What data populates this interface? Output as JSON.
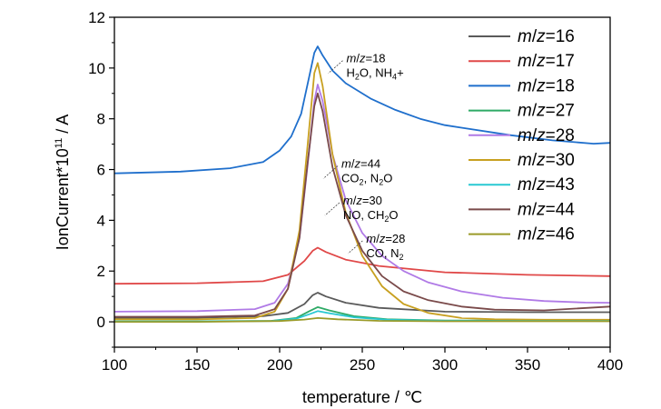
{
  "chart_data": {
    "type": "line",
    "xlabel": "temperature / ℃",
    "ylabel": "IonCurrent*10",
    "ylabel_exp": "11",
    "ylabel_unit": " / A",
    "xlim": [
      100,
      400
    ],
    "ylim": [
      -1,
      12
    ],
    "xticks": [
      100,
      150,
      200,
      250,
      300,
      350,
      400
    ],
    "yticks": [
      0,
      2,
      4,
      6,
      8,
      10,
      12
    ],
    "grid": false,
    "legend_position": "top-right",
    "series": [
      {
        "name": "m/z=16",
        "color": "#5a5a5a",
        "x": [
          100,
          150,
          190,
          205,
          215,
          220,
          223,
          228,
          240,
          260,
          300,
          350,
          400
        ],
        "y": [
          0.15,
          0.16,
          0.22,
          0.35,
          0.7,
          1.05,
          1.15,
          1.0,
          0.75,
          0.55,
          0.4,
          0.38,
          0.38
        ]
      },
      {
        "name": "m/z=17",
        "color": "#e04848",
        "x": [
          100,
          150,
          190,
          205,
          215,
          220,
          223,
          228,
          240,
          260,
          300,
          350,
          400
        ],
        "y": [
          1.5,
          1.52,
          1.6,
          1.85,
          2.4,
          2.8,
          2.92,
          2.75,
          2.45,
          2.2,
          1.95,
          1.85,
          1.8
        ]
      },
      {
        "name": "m/z=18",
        "color": "#1f6fcc",
        "x": [
          100,
          140,
          170,
          190,
          200,
          207,
          213,
          218,
          221,
          223,
          226,
          232,
          240,
          255,
          270,
          285,
          300,
          310,
          340,
          365,
          390,
          400
        ],
        "y": [
          5.85,
          5.92,
          6.05,
          6.3,
          6.75,
          7.3,
          8.2,
          9.7,
          10.6,
          10.85,
          10.5,
          9.9,
          9.4,
          8.8,
          8.35,
          8.0,
          7.75,
          7.65,
          7.35,
          7.15,
          7.02,
          7.05
        ]
      },
      {
        "name": "m/z=27",
        "color": "#2eaa66",
        "x": [
          100,
          150,
          195,
          210,
          218,
          223,
          230,
          245,
          265,
          300,
          400
        ],
        "y": [
          0.02,
          0.02,
          0.04,
          0.15,
          0.42,
          0.58,
          0.45,
          0.22,
          0.1,
          0.05,
          0.05
        ]
      },
      {
        "name": "m/z=28",
        "color": "#b07ae6",
        "x": [
          100,
          150,
          185,
          197,
          205,
          212,
          217,
          221,
          223,
          226,
          232,
          240,
          250,
          262,
          275,
          290,
          310,
          335,
          360,
          385,
          400
        ],
        "y": [
          0.4,
          0.42,
          0.5,
          0.75,
          1.5,
          3.3,
          6.2,
          8.7,
          9.35,
          8.7,
          6.6,
          4.8,
          3.5,
          2.6,
          2.0,
          1.55,
          1.2,
          0.95,
          0.82,
          0.76,
          0.75
        ]
      },
      {
        "name": "m/z=30",
        "color": "#c8a020",
        "x": [
          100,
          150,
          185,
          197,
          205,
          212,
          217,
          221,
          223,
          226,
          232,
          240,
          250,
          262,
          275,
          290,
          310,
          330,
          360,
          400
        ],
        "y": [
          0.1,
          0.1,
          0.15,
          0.4,
          1.3,
          3.6,
          7.0,
          9.8,
          10.2,
          9.3,
          6.6,
          4.3,
          2.6,
          1.4,
          0.7,
          0.35,
          0.15,
          0.1,
          0.08,
          0.08
        ]
      },
      {
        "name": "m/z=43",
        "color": "#28c8d2",
        "x": [
          100,
          150,
          195,
          210,
          218,
          223,
          230,
          245,
          265,
          300,
          400
        ],
        "y": [
          0.01,
          0.01,
          0.03,
          0.12,
          0.3,
          0.42,
          0.34,
          0.18,
          0.08,
          0.04,
          0.03
        ]
      },
      {
        "name": "m/z=44",
        "color": "#7a4a4a",
        "x": [
          100,
          150,
          185,
          197,
          205,
          212,
          217,
          221,
          223,
          226,
          232,
          240,
          250,
          262,
          275,
          290,
          310,
          330,
          360,
          400
        ],
        "y": [
          0.2,
          0.2,
          0.25,
          0.5,
          1.3,
          3.3,
          6.3,
          8.5,
          9.0,
          8.3,
          6.1,
          4.2,
          2.8,
          1.8,
          1.2,
          0.85,
          0.6,
          0.48,
          0.45,
          0.6
        ]
      },
      {
        "name": "m/z=46",
        "color": "#9a9a28",
        "x": [
          100,
          150,
          200,
          215,
          223,
          235,
          260,
          300,
          400
        ],
        "y": [
          0.0,
          0.0,
          0.03,
          0.09,
          0.15,
          0.1,
          0.04,
          0.02,
          0.02
        ]
      }
    ],
    "annotations": [
      {
        "id": "mz18",
        "line1": "m/z=18",
        "line2_parts": [
          "H",
          "2",
          "O, NH",
          "4",
          "+"
        ],
        "x": 236,
        "y": 10.15
      },
      {
        "id": "mz44",
        "line1": "m/z=44",
        "line2_parts": [
          "CO",
          "2",
          ", N",
          "2",
          "O"
        ],
        "x": 233,
        "y": 6.0
      },
      {
        "id": "mz30",
        "line1": "m/z=30",
        "line2_parts": [
          "NO, CH",
          "2",
          "O"
        ],
        "x": 234,
        "y": 4.55
      },
      {
        "id": "mz28",
        "line1": "m/z=28",
        "line2_parts": [
          "CO, N",
          "2"
        ],
        "x": 248,
        "y": 3.05
      }
    ]
  }
}
